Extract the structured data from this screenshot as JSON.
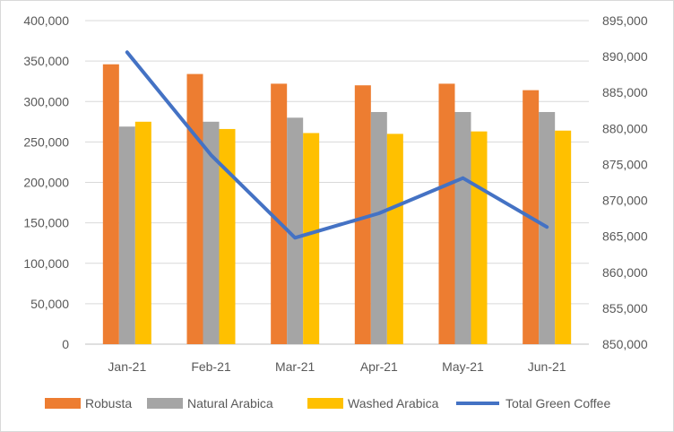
{
  "chart_data": {
    "type": "bar",
    "categories": [
      "Jan-21",
      "Feb-21",
      "Mar-21",
      "Apr-21",
      "May-21",
      "Jun-21"
    ],
    "series": [
      {
        "name": "Robusta",
        "axis": "left",
        "kind": "bar",
        "color": "#ED7D31",
        "values": [
          346000,
          334000,
          322000,
          320000,
          322000,
          314000
        ]
      },
      {
        "name": "Natural Arabica",
        "axis": "left",
        "kind": "bar",
        "color": "#A5A5A5",
        "values": [
          269000,
          275000,
          280000,
          287000,
          287000,
          287000
        ]
      },
      {
        "name": "Washed Arabica",
        "axis": "left",
        "kind": "bar",
        "color": "#FFC000",
        "values": [
          275000,
          266000,
          261000,
          260000,
          263000,
          264000
        ]
      },
      {
        "name": "Total Green Coffee",
        "axis": "right",
        "kind": "line",
        "color": "#4472C4",
        "values": [
          890600,
          876300,
          864800,
          868200,
          873100,
          866300
        ]
      }
    ],
    "y_left": {
      "min": 0,
      "max": 400000,
      "step": 50000,
      "tick_labels": [
        "0",
        "50,000",
        "100,000",
        "150,000",
        "200,000",
        "250,000",
        "300,000",
        "350,000",
        "400,000"
      ]
    },
    "y_right": {
      "min": 850000,
      "max": 895000,
      "step": 5000,
      "tick_labels": [
        "850,000",
        "855,000",
        "860,000",
        "865,000",
        "870,000",
        "875,000",
        "880,000",
        "885,000",
        "890,000",
        "895,000"
      ]
    },
    "grid": true,
    "legend_position": "bottom",
    "title": "",
    "xlabel": "",
    "ylabel": ""
  }
}
